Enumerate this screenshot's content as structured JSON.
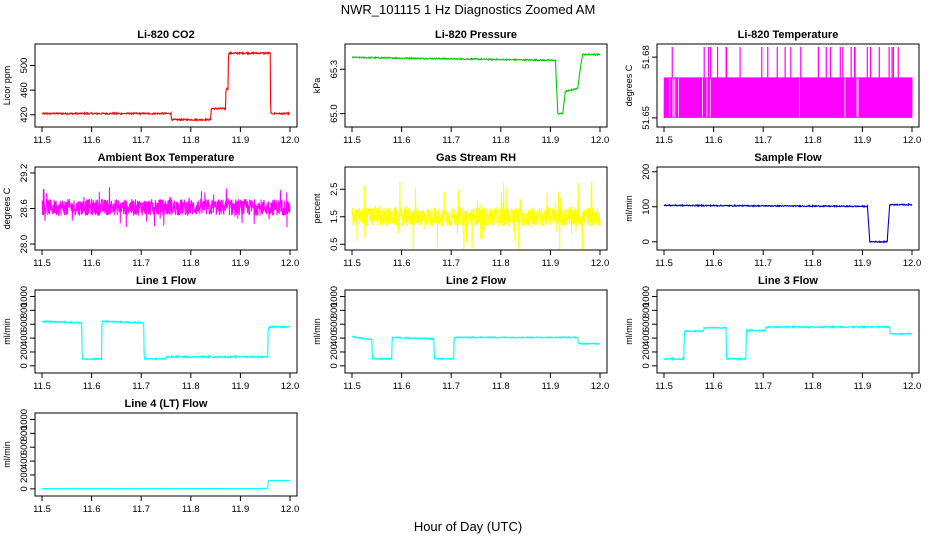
{
  "figure": {
    "title": "NWR_101115  1 Hz Diagnostics Zoomed AM",
    "xlabel": "Hour of Day (UTC)"
  },
  "chart_data": [
    {
      "type": "line",
      "title": "Li-820 CO2",
      "ylabel": "Licor ppm",
      "xlim": [
        11.5,
        12.0
      ],
      "ylim": [
        405,
        530
      ],
      "yticks": [
        420,
        460,
        500
      ],
      "xticks": [
        11.5,
        11.6,
        11.7,
        11.8,
        11.9,
        12.0
      ],
      "color": "#ff0000",
      "noise": 1.2,
      "series": [
        {
          "x": [
            11.5,
            11.76,
            11.761,
            11.84,
            11.841,
            11.87,
            11.871,
            11.875,
            11.876,
            11.96,
            11.961,
            12.0
          ],
          "y": [
            422,
            422,
            412,
            412,
            430,
            430,
            462,
            462,
            520,
            520,
            422,
            422
          ]
        }
      ]
    },
    {
      "type": "line",
      "title": "Li-820 Pressure",
      "ylabel": "kPa",
      "xlim": [
        11.5,
        12.0
      ],
      "ylim": [
        64.93,
        65.45
      ],
      "yticks": [
        65.0,
        65.3
      ],
      "ytick_labels": [
        "65.0",
        "65.3"
      ],
      "xticks": [
        11.5,
        11.6,
        11.7,
        11.8,
        11.9,
        12.0
      ],
      "color": "#00cc00",
      "noise": 0.004,
      "series": [
        {
          "x": [
            11.5,
            11.91,
            11.915,
            11.925,
            11.93,
            11.955,
            11.96,
            11.965,
            12.0
          ],
          "y": [
            65.38,
            65.36,
            65.0,
            65.0,
            65.15,
            65.17,
            65.3,
            65.4,
            65.4
          ]
        }
      ]
    },
    {
      "type": "line",
      "title": "Li-820 Temperature",
      "ylabel": "degrees C",
      "xlim": [
        11.5,
        12.0
      ],
      "ylim": [
        51.647,
        51.685
      ],
      "yticks": [
        51.65,
        51.68
      ],
      "ytick_labels": [
        "51.65",
        "51.68"
      ],
      "xticks": [
        11.5,
        11.6,
        11.7,
        11.8,
        11.9,
        12.0
      ],
      "color": "#ff00ff",
      "style": "square",
      "levels": [
        51.65,
        51.67
      ],
      "spike_top": 51.685
    },
    {
      "type": "line",
      "title": "Ambient Box Temperature",
      "ylabel": "degrees C",
      "xlim": [
        11.5,
        12.0
      ],
      "ylim": [
        27.95,
        29.25
      ],
      "yticks": [
        28.0,
        28.6,
        29.2
      ],
      "ytick_labels": [
        "28.0",
        "28.6",
        "29.2"
      ],
      "xticks": [
        11.5,
        11.6,
        11.7,
        11.8,
        11.9,
        12.0
      ],
      "color": "#ff00ff",
      "style": "noise",
      "mean": 28.62,
      "spread": 0.14,
      "spikes": 0.35
    },
    {
      "type": "line",
      "title": "Gas Stream RH",
      "ylabel": "percent",
      "xlim": [
        11.5,
        12.0
      ],
      "ylim": [
        0.4,
        3.2
      ],
      "yticks": [
        0.5,
        1.5,
        2.5
      ],
      "ytick_labels": [
        "0.5",
        "1.5",
        "2.5"
      ],
      "xticks": [
        11.5,
        11.6,
        11.7,
        11.8,
        11.9,
        12.0
      ],
      "color": "#ffff00",
      "style": "noise",
      "mean": 1.5,
      "spread": 0.35,
      "spikes": 1.3
    },
    {
      "type": "line",
      "title": "Sample Flow",
      "ylabel": "ml/min",
      "xlim": [
        11.5,
        12.0
      ],
      "ylim": [
        -15,
        205
      ],
      "yticks": [
        0,
        100,
        200
      ],
      "xticks": [
        11.5,
        11.6,
        11.7,
        11.8,
        11.9,
        12.0
      ],
      "color": "#0000cc",
      "noise": 1.5,
      "series": [
        {
          "x": [
            11.5,
            11.91,
            11.915,
            11.95,
            11.955,
            12.0
          ],
          "y": [
            104,
            101,
            0,
            0,
            106,
            106
          ]
        }
      ]
    },
    {
      "type": "line",
      "title": "Line 1 Flow",
      "ylabel": "ml/min",
      "xlim": [
        11.5,
        12.0
      ],
      "ylim": [
        -60,
        1050
      ],
      "yticks": [
        0,
        200,
        400,
        600,
        800,
        1000
      ],
      "xticks": [
        11.5,
        11.6,
        11.7,
        11.8,
        11.9,
        12.0
      ],
      "color": "#00ffff",
      "noise": 10,
      "series": [
        {
          "x": [
            11.5,
            11.58,
            11.581,
            11.62,
            11.621,
            11.705,
            11.706,
            11.75,
            11.751,
            11.955,
            11.956,
            12.0
          ],
          "y": [
            640,
            620,
            100,
            100,
            640,
            620,
            100,
            100,
            130,
            130,
            560,
            560
          ]
        }
      ]
    },
    {
      "type": "line",
      "title": "Line 2 Flow",
      "ylabel": "ml/min",
      "xlim": [
        11.5,
        12.0
      ],
      "ylim": [
        -60,
        1050
      ],
      "yticks": [
        0,
        200,
        400,
        600,
        800,
        1000
      ],
      "xticks": [
        11.5,
        11.6,
        11.7,
        11.8,
        11.9,
        12.0
      ],
      "color": "#00ffff",
      "noise": 8,
      "series": [
        {
          "x": [
            11.5,
            11.54,
            11.541,
            11.58,
            11.581,
            11.665,
            11.666,
            11.705,
            11.706,
            11.955,
            11.956,
            12.0
          ],
          "y": [
            420,
            380,
            100,
            100,
            410,
            390,
            100,
            100,
            410,
            410,
            320,
            320
          ]
        }
      ]
    },
    {
      "type": "line",
      "title": "Line 3 Flow",
      "ylabel": "ml/min",
      "xlim": [
        11.5,
        12.0
      ],
      "ylim": [
        -60,
        1050
      ],
      "yticks": [
        0,
        200,
        400,
        600,
        800,
        1000
      ],
      "xticks": [
        11.5,
        11.6,
        11.7,
        11.8,
        11.9,
        12.0
      ],
      "color": "#00ffff",
      "noise": 10,
      "series": [
        {
          "x": [
            11.5,
            11.54,
            11.541,
            11.58,
            11.581,
            11.625,
            11.626,
            11.665,
            11.666,
            11.705,
            11.706,
            11.955,
            11.956,
            12.0
          ],
          "y": [
            100,
            100,
            500,
            500,
            550,
            550,
            100,
            100,
            510,
            510,
            560,
            560,
            460,
            460
          ]
        }
      ]
    },
    {
      "type": "line",
      "title": "Line 4 (LT) Flow",
      "ylabel": "ml/min",
      "xlim": [
        11.5,
        12.0
      ],
      "ylim": [
        -60,
        1050
      ],
      "yticks": [
        0,
        200,
        400,
        600,
        800,
        1000
      ],
      "xticks": [
        11.5,
        11.6,
        11.7,
        11.8,
        11.9,
        12.0
      ],
      "color": "#00ffff",
      "noise": 1,
      "series": [
        {
          "x": [
            11.5,
            11.955,
            11.956,
            12.0
          ],
          "y": [
            5,
            5,
            120,
            120
          ]
        }
      ]
    }
  ]
}
